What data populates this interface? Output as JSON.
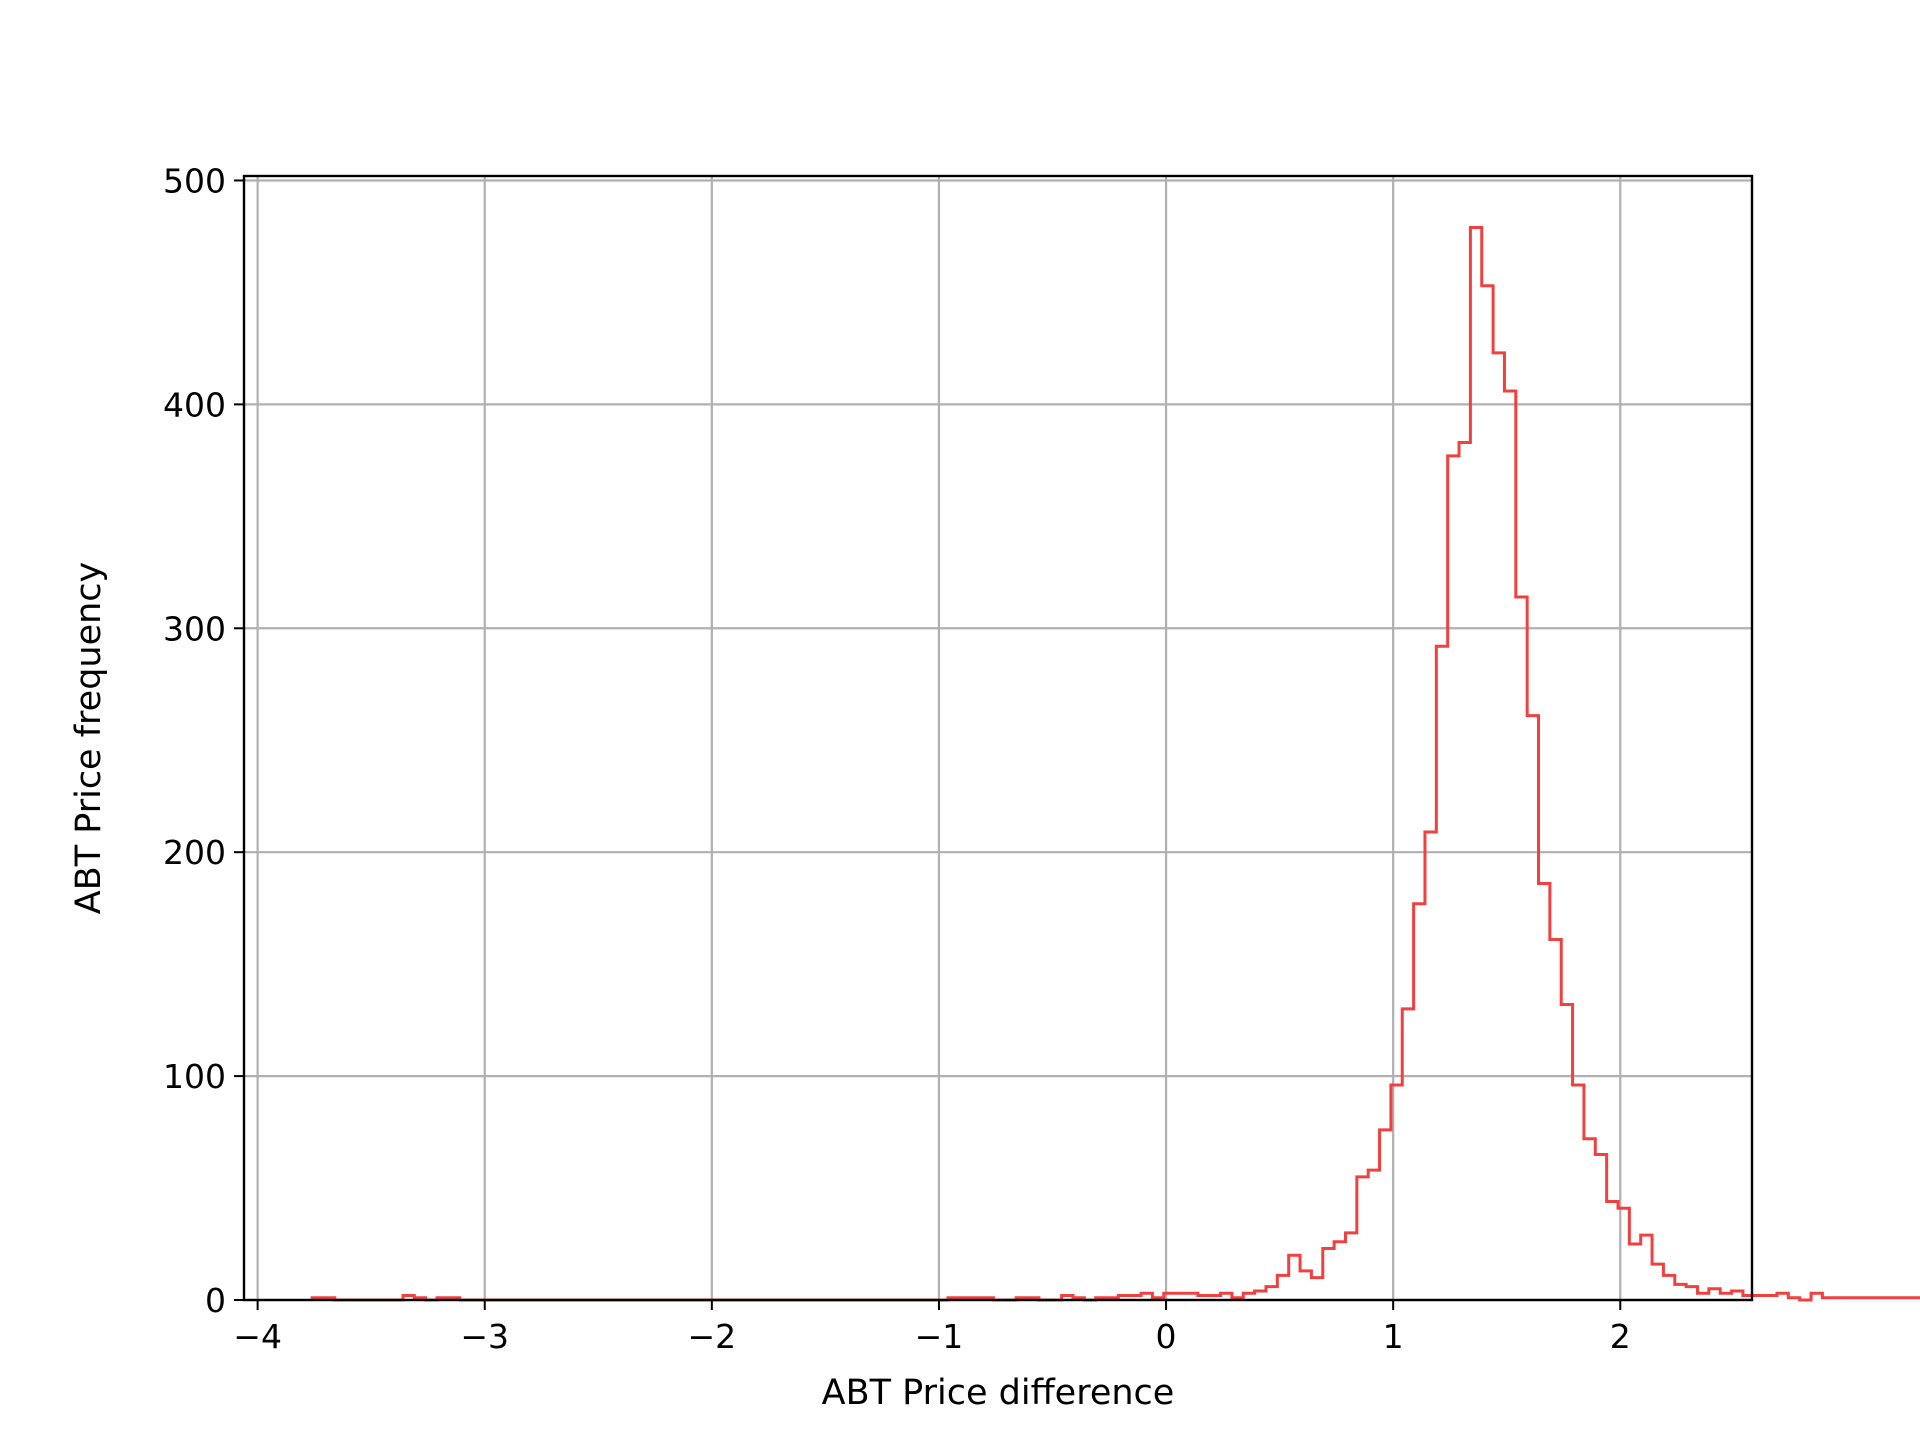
{
  "chart_data": {
    "type": "histogram",
    "title": "",
    "xlabel": "ABT Price difference",
    "ylabel": "ABT Price frequency",
    "xlim": [
      -4.06,
      2.58
    ],
    "ylim": [
      0,
      502
    ],
    "xticks": [
      -4,
      -3,
      -2,
      -1,
      0,
      1,
      2
    ],
    "xtick_labels": [
      "−4",
      "−3",
      "−2",
      "−1",
      "0",
      "1",
      "2"
    ],
    "yticks": [
      0,
      100,
      200,
      300,
      400,
      500
    ],
    "ytick_labels": [
      "0",
      "100",
      "200",
      "300",
      "400",
      "500"
    ],
    "grid": true,
    "legend": "none",
    "histtype": "step",
    "color": "#f04040",
    "bin_start": -3.76,
    "bin_width": 0.05,
    "counts": [
      1,
      1,
      0,
      0,
      0,
      0,
      0,
      0,
      2,
      1,
      0,
      1,
      1,
      0,
      0,
      0,
      0,
      0,
      0,
      0,
      0,
      0,
      0,
      0,
      0,
      0,
      0,
      0,
      0,
      0,
      0,
      0,
      0,
      0,
      0,
      0,
      0,
      0,
      0,
      0,
      0,
      0,
      0,
      0,
      0,
      0,
      0,
      0,
      0,
      0,
      0,
      0,
      0,
      0,
      0,
      0,
      1,
      1,
      1,
      1,
      0,
      0,
      1,
      1,
      0,
      0,
      2,
      1,
      0,
      1,
      1,
      2,
      2,
      3,
      1,
      3,
      3,
      3,
      2,
      2,
      3,
      1,
      3,
      4,
      6,
      11,
      20,
      13,
      10,
      23,
      26,
      30,
      55,
      58,
      76,
      96,
      130,
      177,
      209,
      292,
      377,
      383,
      479,
      453,
      423,
      406,
      314,
      261,
      186,
      161,
      132,
      96,
      72,
      65,
      44,
      41,
      25,
      29,
      16,
      11,
      7,
      6,
      3,
      5,
      3,
      4,
      2,
      2,
      2,
      3,
      1,
      0,
      3,
      1,
      1,
      1,
      1,
      1,
      1,
      1,
      1,
      1,
      1,
      1,
      0,
      0,
      1,
      1,
      1,
      1,
      1,
      1,
      1,
      1
    ]
  }
}
